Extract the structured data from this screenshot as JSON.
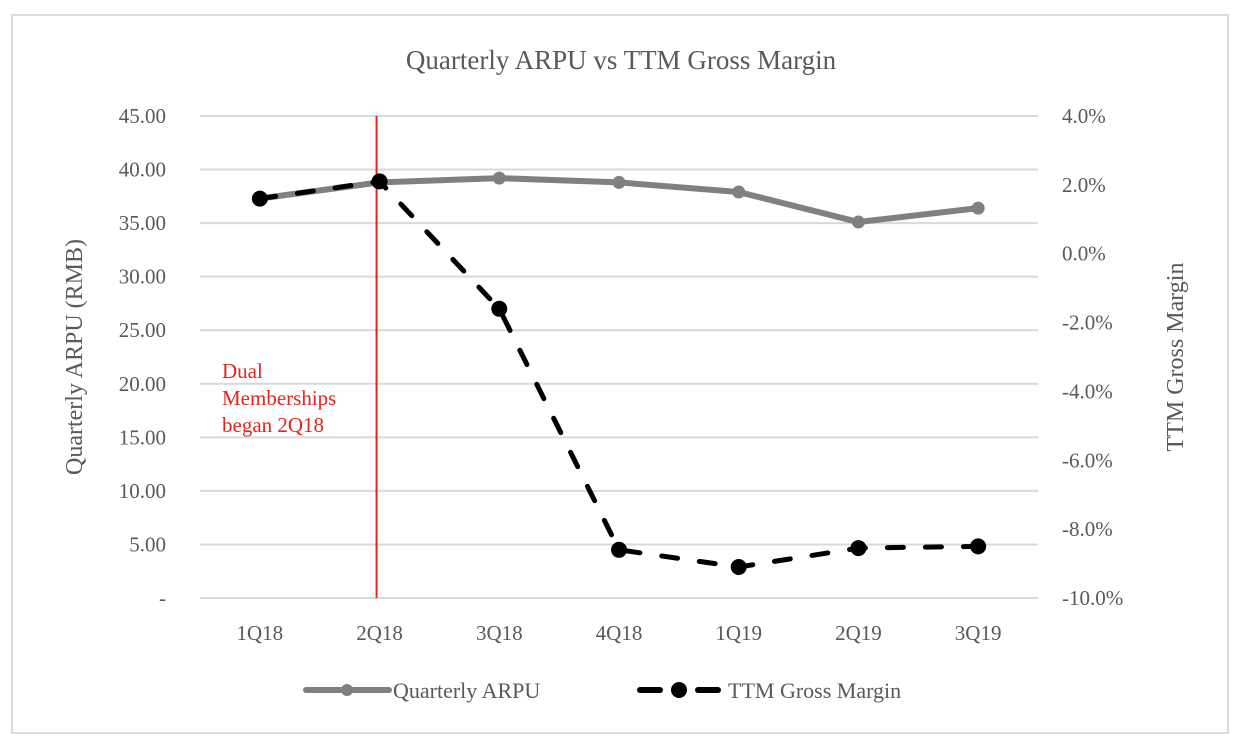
{
  "chart_data": {
    "type": "line",
    "title": "Quarterly ARPU vs TTM Gross Margin",
    "xlabel": "",
    "ylabel": "Quarterly ARPU (RMB)",
    "y2label": "TTM Gross Margin",
    "categories": [
      "1Q18",
      "2Q18",
      "3Q18",
      "4Q18",
      "1Q19",
      "2Q19",
      "3Q19"
    ],
    "ylim": [
      0,
      45
    ],
    "y2lim": [
      -10.0,
      4.0
    ],
    "yticks": [
      0,
      5,
      10,
      15,
      20,
      25,
      30,
      35,
      40,
      45
    ],
    "ytick_labels": [
      "-",
      "5.00",
      "10.00",
      "15.00",
      "20.00",
      "25.00",
      "30.00",
      "35.00",
      "40.00",
      "45.00"
    ],
    "y2ticks": [
      -10,
      -8,
      -6,
      -4,
      -2,
      0,
      2,
      4
    ],
    "y2tick_labels": [
      "-10.0%",
      "-8.0%",
      "-6.0%",
      "-4.0%",
      "-2.0%",
      "0.0%",
      "2.0%",
      "4.0%"
    ],
    "grid": true,
    "legend_position": "bottom",
    "series": [
      {
        "name": "Quarterly ARPU",
        "axis": "left",
        "style": "solid",
        "color": "#808080",
        "values": [
          37.3,
          38.8,
          39.2,
          38.8,
          37.9,
          35.1,
          36.4
        ]
      },
      {
        "name": "TTM Gross Margin",
        "axis": "right",
        "style": "dashed",
        "color": "#000000",
        "unit": "%",
        "values": [
          1.6,
          2.1,
          -1.6,
          -8.6,
          -9.1,
          -8.55,
          -8.5
        ]
      }
    ],
    "annotations": [
      {
        "type": "vertical-line",
        "at_category": "2Q18",
        "color": "#e8231d",
        "text_lines": [
          "Dual",
          "Memberships",
          "began 2Q18"
        ]
      }
    ]
  }
}
